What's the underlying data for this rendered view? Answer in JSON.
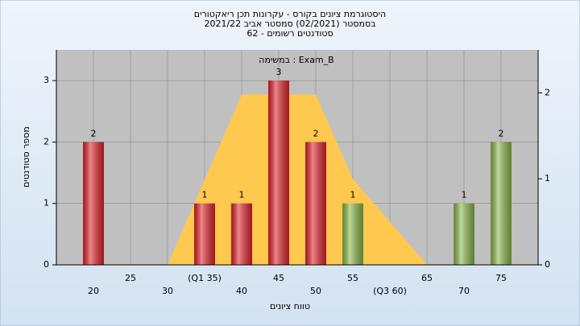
{
  "chart_data": {
    "type": "bar",
    "title_lines": [
      "היסטוגרמת ציונים בקורס - עקרונות תכן ריאקטורים",
      "בסמסטר (02/2021) סמסטר אביב 2021/22",
      "62 - סטודנטים רשומים"
    ],
    "subtitle": "במשימה : Exam_B",
    "y_label": "מספר סטודנטים",
    "x_label": "טווח ציונים",
    "x": [
      20,
      35,
      40,
      45,
      50,
      55,
      70,
      75
    ],
    "values": [
      2,
      1,
      1,
      3,
      2,
      1,
      1,
      2
    ],
    "colors": [
      "#e3232b",
      "#e3232b",
      "#e3232b",
      "#e3232b",
      "#e3232b",
      "#8cb84a",
      "#8cb84a",
      "#8cb84a"
    ],
    "area": {
      "x": [
        30,
        40,
        50,
        55,
        65
      ],
      "values": [
        0,
        1.98,
        1.98,
        1,
        0
      ],
      "color": "#ffc84f",
      "axis": "y2"
    },
    "xlim": [
      15,
      80
    ],
    "xticks": [
      20,
      25,
      30,
      {
        "value": 35,
        "label": "(Q1 35)"
      },
      40,
      45,
      50,
      55,
      {
        "value": 60,
        "label": "(Q3 60)"
      },
      65,
      70,
      75
    ],
    "ylim": [
      0,
      3.5
    ],
    "yticks": [
      0,
      1,
      2,
      3
    ],
    "y2lim": [
      0,
      2.5
    ],
    "y2ticks": [
      0,
      1,
      2
    ],
    "grid": true
  }
}
